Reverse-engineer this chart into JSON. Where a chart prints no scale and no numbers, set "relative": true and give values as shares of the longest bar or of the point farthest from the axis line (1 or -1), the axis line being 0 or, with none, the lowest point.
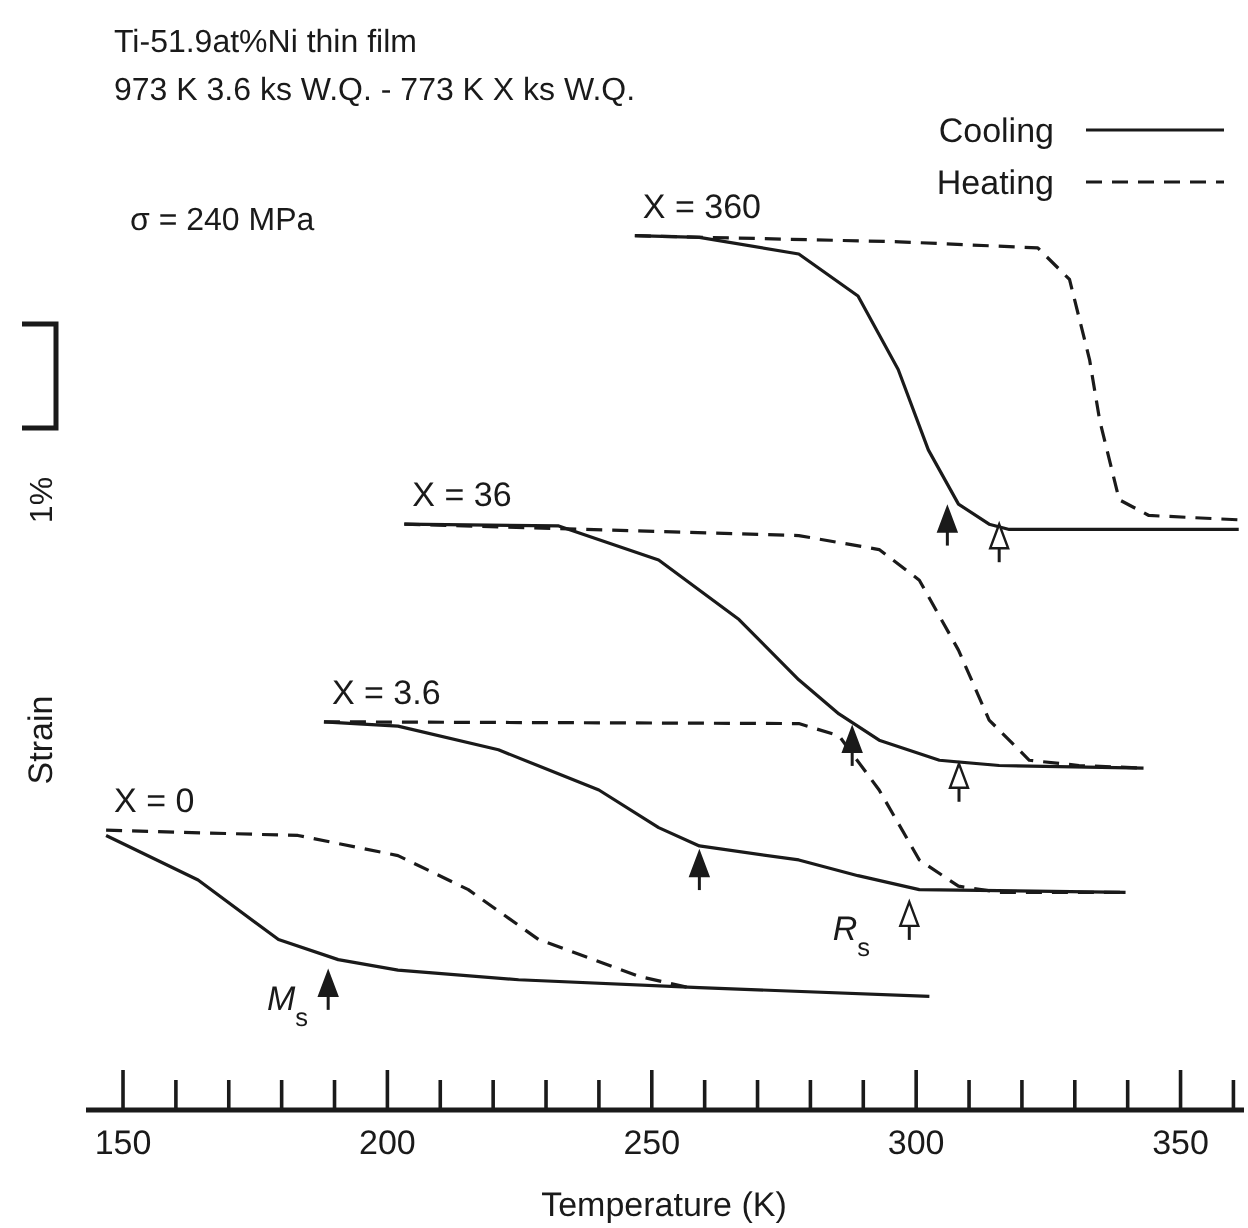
{
  "chart_data": {
    "type": "line",
    "title": "Ti-51.9at%Ni thin film",
    "subtitle": "973 K 3.6 ks W.Q. - 773 K X ks W.Q.",
    "xlabel": "Temperature (K)",
    "ylabel": "Strain",
    "relative": true,
    "xlim": [
      143,
      362
    ],
    "xticks": [
      150,
      {
        "value": 160,
        "label": null
      },
      {
        "value": 170,
        "label": null
      },
      {
        "value": 180,
        "label": null
      },
      {
        "value": 190,
        "label": null
      },
      200,
      {
        "value": 210,
        "label": null
      },
      {
        "value": 220,
        "label": null
      },
      {
        "value": 230,
        "label": null
      },
      {
        "value": 240,
        "label": null
      },
      250,
      {
        "value": 260,
        "label": null
      },
      {
        "value": 270,
        "label": null
      },
      {
        "value": 280,
        "label": null
      },
      {
        "value": 290,
        "label": null
      },
      300,
      {
        "value": 310,
        "label": null
      },
      {
        "value": 320,
        "label": null
      },
      {
        "value": 330,
        "label": null
      },
      {
        "value": 340,
        "label": null
      },
      350,
      {
        "value": 360,
        "label": null
      }
    ],
    "legend": "top right",
    "marker": "none",
    "series": [
      {
        "name": "Cooling",
        "color": "#1a1a1a",
        "line_style": "solid",
        "x": [
          146.8,
          164.2,
          179.4,
          190.7,
          202,
          224.8,
          259,
          302.5
        ],
        "values": [
          0.314,
          0.263,
          0.195,
          0.172,
          0.16,
          0.149,
          0.14,
          0.13
        ]
      },
      {
        "name": "Heating",
        "color": "#1a1a1a",
        "line_style": "dashed",
        "x": [
          146.8,
          183.1,
          202,
          215.3,
          228.6,
          247.5,
          257
        ],
        "values": [
          0.32,
          0.314,
          0.291,
          0.252,
          0.195,
          0.153,
          0.14
        ]
      },
      {
        "color": "#1a1a1a",
        "line_style": "solid",
        "x": [
          188,
          202,
          221,
          240,
          251.3,
          259,
          277.8,
          289,
          300.6,
          339.6
        ],
        "values": [
          0.444,
          0.439,
          0.412,
          0.366,
          0.323,
          0.302,
          0.286,
          0.268,
          0.252,
          0.249
        ]
      },
      {
        "color": "#1a1a1a",
        "line_style": "dashed",
        "x": [
          188,
          277.8,
          285.4,
          293,
          300.6,
          308,
          315.7,
          339.6
        ],
        "values": [
          0.444,
          0.442,
          0.428,
          0.366,
          0.286,
          0.256,
          0.249,
          0.249
        ]
      },
      {
        "color": "#1a1a1a",
        "line_style": "solid",
        "x": [
          203.2,
          232.4,
          251.3,
          266.5,
          277.8,
          285.4,
          293,
          304.4,
          315.7,
          343
        ],
        "values": [
          0.67,
          0.668,
          0.629,
          0.561,
          0.492,
          0.453,
          0.423,
          0.4,
          0.394,
          0.391
        ]
      },
      {
        "color": "#1a1a1a",
        "line_style": "dashed",
        "x": [
          203.2,
          277.8,
          293,
          300.6,
          308,
          313.8,
          321.4,
          330.8,
          343
        ],
        "values": [
          0.67,
          0.657,
          0.641,
          0.606,
          0.526,
          0.446,
          0.4,
          0.394,
          0.391
        ]
      },
      {
        "color": "#1a1a1a",
        "line_style": "solid",
        "x": [
          246.8,
          259,
          277.8,
          289,
          296.6,
          302.3,
          308,
          313.8,
          317.6,
          361
        ],
        "values": [
          1.0,
          0.998,
          0.979,
          0.931,
          0.847,
          0.755,
          0.693,
          0.67,
          0.664,
          0.664
        ]
      },
      {
        "color": "#1a1a1a",
        "line_style": "dashed",
        "x": [
          246.8,
          296.8,
          323,
          329,
          332.8,
          334.7,
          338.4,
          344,
          361
        ],
        "values": [
          1.0,
          0.993,
          0.986,
          0.95,
          0.858,
          0.789,
          0.698,
          0.68,
          0.675
        ]
      }
    ],
    "annotations": [
      "σ = 240 MPa",
      "1%",
      {
        "text": "X = 0",
        "x": 146.8,
        "y": 0.32
      },
      {
        "text": "X = 3.6",
        "x": 188,
        "y": 0.444
      },
      {
        "text": "X = 36",
        "x": 203.2,
        "y": 0.67
      },
      {
        "text": "X = 360",
        "x": 246.8,
        "y": 1.0
      },
      "M$_{s}$",
      "R$_{s}$"
    ]
  }
}
